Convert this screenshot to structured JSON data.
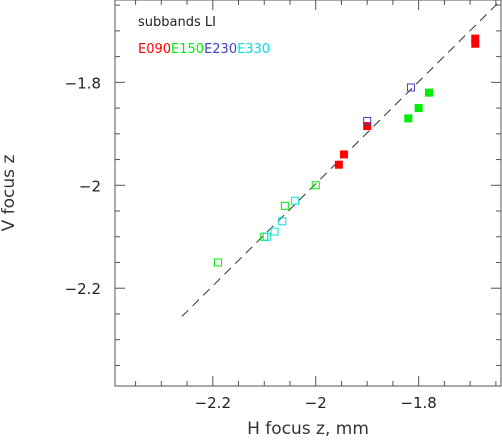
{
  "chart_data": {
    "type": "scatter",
    "xlabel": "H focus z, mm",
    "ylabel": "V focus z",
    "xlim": [
      -2.39,
      -1.64
    ],
    "ylim": [
      -2.39,
      -1.64
    ],
    "xticks": [
      -2.2,
      -2.0,
      -1.8
    ],
    "yticks": [
      -2.2,
      -2.0,
      -1.8
    ],
    "xtick_labels": [
      "−2.2",
      "−2",
      "−1.8"
    ],
    "ytick_labels": [
      "−2.2",
      "−2",
      "−1.8"
    ],
    "grid": false,
    "legend": {
      "placement": "top-left",
      "title": "subbands LI",
      "entries": [
        {
          "label": "E090",
          "color": "#ff0000"
        },
        {
          "label": "E150",
          "color": "#00ee00"
        },
        {
          "label": "E230",
          "color": "#4040c0"
        },
        {
          "label": "E330",
          "color": "#00e0e0"
        }
      ]
    },
    "reference_line": {
      "style": "dashed",
      "color": "#333333",
      "x": [
        -2.26,
        -1.64
      ],
      "y": [
        -2.255,
        -1.64
      ]
    },
    "series": [
      {
        "name": "E090",
        "color": "#ff0000",
        "filled": true,
        "points": [
          [
            -1.69,
            -1.715
          ],
          [
            -1.69,
            -1.725
          ],
          [
            -1.9,
            -1.885
          ],
          [
            -1.945,
            -1.94
          ],
          [
            -1.955,
            -1.96
          ]
        ]
      },
      {
        "name": "E150",
        "color": "#00ee00",
        "filled": true,
        "points": [
          [
            -1.78,
            -1.82
          ],
          [
            -1.8,
            -1.85
          ],
          [
            -1.82,
            -1.87
          ]
        ]
      },
      {
        "name": "E150",
        "color": "#00ee00",
        "filled": false,
        "points": [
          [
            -2.19,
            -2.15
          ],
          [
            -2.1,
            -2.1
          ],
          [
            -2.06,
            -2.04
          ],
          [
            -2.0,
            -2.0
          ]
        ]
      },
      {
        "name": "E230",
        "color": "#4040c0",
        "filled": false,
        "points": [
          [
            -1.815,
            -1.81
          ],
          [
            -1.9,
            -1.875
          ]
        ]
      },
      {
        "name": "E330",
        "color": "#00e0e0",
        "filled": false,
        "points": [
          [
            -2.04,
            -2.03
          ],
          [
            -2.065,
            -2.07
          ],
          [
            -2.08,
            -2.09
          ],
          [
            -2.095,
            -2.1
          ]
        ]
      }
    ]
  }
}
